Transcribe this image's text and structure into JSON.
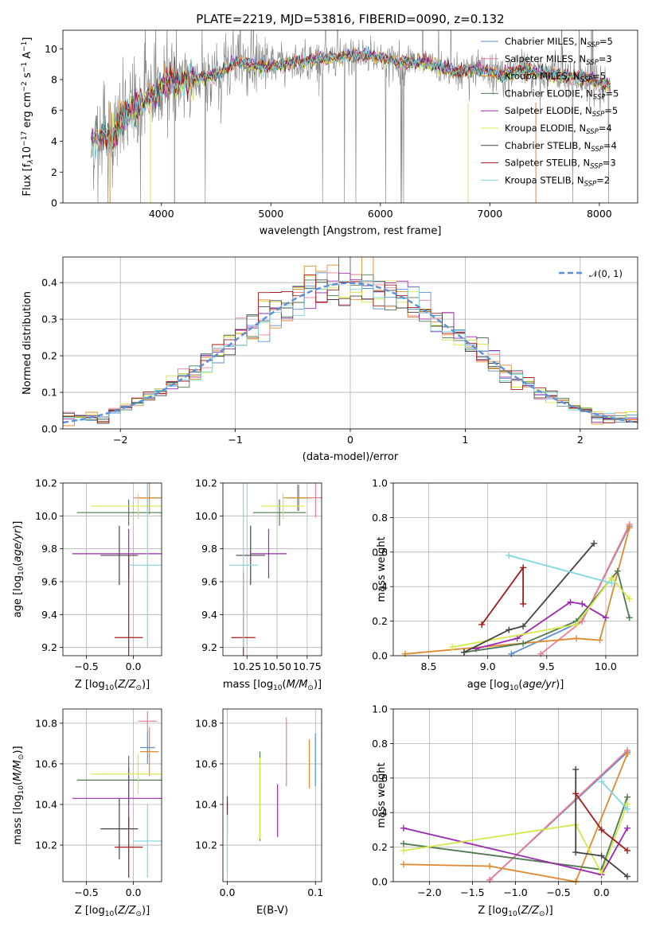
{
  "figure": {
    "title": "PLATE=2219, MJD=53816, FIBERID=0090, z=0.132"
  },
  "colors": {
    "Chabrier MILES": "#5b8fd6",
    "Salpeter MILES": "#f07c8f",
    "Kroupa MILES": "#e08a30",
    "Chabrier ELODIE": "#4f7a4f",
    "Salpeter ELODIE": "#9b2ab0",
    "Kroupa ELODIE": "#d4e84a",
    "Chabrier STELIB": "#444444",
    "Salpeter STELIB": "#a31a1a",
    "Kroupa STELIB": "#7fd8df",
    "spectrum": "#808080",
    "gaussian": "#5b8fd6"
  },
  "chart_data": [
    {
      "id": "spectrum",
      "type": "line",
      "title": "PLATE=2219, MJD=53816, FIBERID=0090, z=0.132",
      "xlabel": "wavelength [Angstrom, rest frame]",
      "ylabel": "Flux [f_λ10^-17 erg cm^-2 s^-1 A^-1]",
      "xlim": [
        3100,
        8350
      ],
      "ylim": [
        0,
        11.2
      ],
      "xticks": [
        4000,
        5000,
        6000,
        7000,
        8000
      ],
      "yticks": [
        0,
        2,
        4,
        6,
        8,
        10
      ],
      "grid": false,
      "legend_position": "right",
      "legend": [
        {
          "label": "Chabrier MILES, N",
          "sub": "SSP",
          "eq": "=5"
        },
        {
          "label": "Salpeter MILES, N",
          "sub": "SSP",
          "eq": "=3"
        },
        {
          "label": "Kroupa MILES, N",
          "sub": "SSP",
          "eq": "=5"
        },
        {
          "label": "Chabrier ELODIE, N",
          "sub": "SSP",
          "eq": "=5"
        },
        {
          "label": "Salpeter ELODIE, N",
          "sub": "SSP",
          "eq": "=5"
        },
        {
          "label": "Kroupa ELODIE, N",
          "sub": "SSP",
          "eq": "=4"
        },
        {
          "label": "Chabrier STELIB, N",
          "sub": "SSP",
          "eq": "=4"
        },
        {
          "label": "Salpeter STELIB, N",
          "sub": "SSP",
          "eq": "=3"
        },
        {
          "label": "Kroupa STELIB, N",
          "sub": "SSP",
          "eq": "=2"
        }
      ],
      "model_curve": {
        "x": [
          3350,
          3450,
          3550,
          3650,
          3750,
          3850,
          3950,
          4050,
          4150,
          4300,
          4500,
          4700,
          4900,
          5100,
          5300,
          5500,
          5700,
          5900,
          6100,
          6300,
          6500,
          6700,
          6900,
          7100,
          7300,
          7500,
          7700,
          7900,
          8100
        ],
        "y": [
          4.0,
          4.5,
          4.2,
          5.5,
          6.0,
          6.8,
          7.0,
          8.1,
          7.8,
          8.0,
          8.3,
          9.2,
          8.8,
          9.0,
          9.2,
          9.4,
          9.5,
          9.6,
          9.2,
          9.1,
          8.9,
          8.5,
          8.6,
          8.3,
          8.6,
          8.4,
          8.2,
          8.0,
          7.6
        ]
      }
    },
    {
      "id": "residuals",
      "type": "bar",
      "xlabel": "(data-model)/error",
      "ylabel": "Normed distribution",
      "xlim": [
        -2.5,
        2.5
      ],
      "ylim": [
        0,
        0.47
      ],
      "xticks": [
        -2,
        -1,
        0,
        1,
        2
      ],
      "yticks": [
        0.0,
        0.1,
        0.2,
        0.3,
        0.4
      ],
      "grid": true,
      "legend_position": "top-right",
      "legend_label": "𝒩(0, 1)",
      "bin_width": 0.1
    },
    {
      "id": "age-vs-Z",
      "type": "scatter",
      "xlabel": "Z [log10(Z/Z☉)]",
      "ylabel": "age [log10(age/yr)]",
      "xlim": [
        -0.75,
        0.3
      ],
      "ylim": [
        9.15,
        10.2
      ],
      "xticks": [
        -0.5,
        0.0
      ],
      "yticks": [
        9.2,
        9.4,
        9.6,
        9.8,
        10.0,
        10.2
      ],
      "grid": true,
      "points": [
        {
          "series": "Chabrier MILES",
          "x": 0.15,
          "y": 10.11,
          "ex": 0.1,
          "ey": 0.08
        },
        {
          "series": "Salpeter MILES",
          "x": 0.15,
          "y": 10.11,
          "ex": 0.15,
          "ey": 0.05
        },
        {
          "series": "Kroupa MILES",
          "x": 0.17,
          "y": 10.11,
          "ex": 0.12,
          "ey": 0.1
        },
        {
          "series": "Chabrier ELODIE",
          "x": -0.05,
          "y": 10.02,
          "ex": 0.55,
          "ey": 0.08
        },
        {
          "series": "Salpeter ELODIE",
          "x": -0.05,
          "y": 9.77,
          "ex": 0.6,
          "ey": 0.15
        },
        {
          "series": "Kroupa ELODIE",
          "x": 0.05,
          "y": 10.06,
          "ex": 0.5,
          "ey": 0.08
        },
        {
          "series": "Chabrier STELIB",
          "x": -0.15,
          "y": 9.76,
          "ex": 0.2,
          "ey": 0.18
        },
        {
          "series": "Salpeter STELIB",
          "x": -0.05,
          "y": 9.26,
          "ex": 0.15,
          "ey": 0.5
        },
        {
          "series": "Kroupa STELIB",
          "x": 0.15,
          "y": 9.7,
          "ex": 0.2,
          "ey": 0.5
        }
      ]
    },
    {
      "id": "age-vs-mass",
      "type": "scatter",
      "xlabel": "mass [log10(M/M☉)]",
      "ylabel": "",
      "xlim": [
        10.05,
        10.87
      ],
      "ylim": [
        9.15,
        10.2
      ],
      "xticks": [
        10.25,
        10.5,
        10.75
      ],
      "xtick_labels": [
        "10.25",
        "10.50",
        "10.75"
      ],
      "yticks": [
        9.2,
        9.4,
        9.6,
        9.8,
        10.0,
        10.2
      ],
      "grid": true,
      "points": [
        {
          "series": "Chabrier MILES",
          "x": 10.68,
          "y": 10.11,
          "ex": 0.08,
          "ey": 0.08
        },
        {
          "series": "Salpeter MILES",
          "x": 10.82,
          "y": 10.11,
          "ex": 0.05,
          "ey": 0.12
        },
        {
          "series": "Kroupa MILES",
          "x": 10.67,
          "y": 10.11,
          "ex": 0.12,
          "ey": 0.08
        },
        {
          "series": "Chabrier ELODIE",
          "x": 10.52,
          "y": 10.02,
          "ex": 0.22,
          "ey": 0.08
        },
        {
          "series": "Salpeter ELODIE",
          "x": 10.43,
          "y": 9.77,
          "ex": 0.15,
          "ey": 0.15
        },
        {
          "series": "Kroupa ELODIE",
          "x": 10.55,
          "y": 10.06,
          "ex": 0.18,
          "ey": 0.08
        },
        {
          "series": "Chabrier STELIB",
          "x": 10.28,
          "y": 9.76,
          "ex": 0.12,
          "ey": 0.18
        },
        {
          "series": "Salpeter STELIB",
          "x": 10.22,
          "y": 9.26,
          "ex": 0.1,
          "ey": 0.4
        },
        {
          "series": "Kroupa STELIB",
          "x": 10.22,
          "y": 9.7,
          "ex": 0.12,
          "ey": 0.5
        }
      ]
    },
    {
      "id": "weight-vs-age",
      "type": "line",
      "xlabel": "age [log10(age/yr)]",
      "ylabel": "mass weight",
      "xlim": [
        8.2,
        10.27
      ],
      "ylim": [
        0,
        1.0
      ],
      "xticks": [
        8.5,
        9.0,
        9.5,
        10.0
      ],
      "yticks": [
        0.0,
        0.2,
        0.4,
        0.6,
        0.8,
        1.0
      ],
      "grid": true,
      "series": [
        {
          "name": "Chabrier MILES",
          "x": [
            9.2,
            9.8,
            10.2
          ],
          "y": [
            0.01,
            0.2,
            0.75
          ]
        },
        {
          "name": "Salpeter MILES",
          "x": [
            9.45,
            9.8,
            10.2
          ],
          "y": [
            0.01,
            0.2,
            0.76
          ]
        },
        {
          "name": "Kroupa MILES",
          "x": [
            8.3,
            9.75,
            9.95,
            10.2
          ],
          "y": [
            0.01,
            0.1,
            0.09,
            0.74
          ]
        },
        {
          "name": "Chabrier ELODIE",
          "x": [
            8.8,
            9.3,
            9.75,
            10.1,
            10.2
          ],
          "y": [
            0.02,
            0.07,
            0.2,
            0.49,
            0.22
          ]
        },
        {
          "name": "Salpeter ELODIE",
          "x": [
            8.9,
            9.25,
            9.7,
            9.8,
            10.0
          ],
          "y": [
            0.04,
            0.1,
            0.31,
            0.3,
            0.22
          ]
        },
        {
          "name": "Kroupa ELODIE",
          "x": [
            8.7,
            9.75,
            10.05,
            10.2
          ],
          "y": [
            0.05,
            0.18,
            0.45,
            0.33
          ]
        },
        {
          "name": "Chabrier STELIB",
          "x": [
            8.8,
            9.18,
            9.3,
            9.9
          ],
          "y": [
            0.02,
            0.15,
            0.17,
            0.65
          ]
        },
        {
          "name": "Salpeter STELIB",
          "x": [
            8.95,
            9.3,
            9.3
          ],
          "y": [
            0.18,
            0.51,
            0.3
          ]
        },
        {
          "name": "Kroupa STELIB",
          "x": [
            9.18,
            10.05
          ],
          "y": [
            0.58,
            0.42
          ]
        }
      ]
    },
    {
      "id": "mass-vs-Z",
      "type": "scatter",
      "xlabel": "Z [log10(Z/Z☉)]",
      "ylabel": "mass [log10(M/M☉)]",
      "xlim": [
        -0.75,
        0.3
      ],
      "ylim": [
        10.02,
        10.87
      ],
      "xticks": [
        -0.5,
        0.0
      ],
      "yticks": [
        10.2,
        10.4,
        10.6,
        10.8
      ],
      "grid": true,
      "points": [
        {
          "series": "Chabrier MILES",
          "x": 0.15,
          "y": 10.68,
          "ex": 0.08,
          "ey": 0.08
        },
        {
          "series": "Salpeter MILES",
          "x": 0.15,
          "y": 10.81,
          "ex": 0.1,
          "ey": 0.05
        },
        {
          "series": "Kroupa MILES",
          "x": 0.17,
          "y": 10.66,
          "ex": 0.1,
          "ey": 0.12
        },
        {
          "series": "Chabrier ELODIE",
          "x": -0.05,
          "y": 10.52,
          "ex": 0.55,
          "ey": 0.12
        },
        {
          "series": "Salpeter ELODIE",
          "x": -0.05,
          "y": 10.43,
          "ex": 0.6,
          "ey": 0.15
        },
        {
          "series": "Kroupa ELODIE",
          "x": 0.05,
          "y": 10.55,
          "ex": 0.5,
          "ey": 0.1
        },
        {
          "series": "Chabrier STELIB",
          "x": -0.15,
          "y": 10.28,
          "ex": 0.2,
          "ey": 0.15
        },
        {
          "series": "Salpeter STELIB",
          "x": -0.05,
          "y": 10.19,
          "ex": 0.15,
          "ey": 0.15
        },
        {
          "series": "Kroupa STELIB",
          "x": 0.15,
          "y": 10.22,
          "ex": 0.15,
          "ey": 0.18
        }
      ]
    },
    {
      "id": "mass-vs-ebv",
      "type": "scatter",
      "xlabel": "E(B-V)",
      "ylabel": "",
      "xlim": [
        -0.005,
        0.107
      ],
      "ylim": [
        10.02,
        10.87
      ],
      "xticks": [
        0.0,
        0.1
      ],
      "yticks": [
        10.2,
        10.4,
        10.6,
        10.8
      ],
      "grid": true,
      "points": [
        {
          "series": "Chabrier MILES",
          "x": 0.1,
          "y": 10.62,
          "ey": 0.13
        },
        {
          "series": "Salpeter MILES",
          "x": 0.067,
          "y": 10.66,
          "ey": 0.17
        },
        {
          "series": "Kroupa MILES",
          "x": 0.093,
          "y": 10.6,
          "ey": 0.12
        },
        {
          "series": "Chabrier ELODIE",
          "x": 0.037,
          "y": 10.44,
          "ey": 0.22
        },
        {
          "series": "Salpeter ELODIE",
          "x": 0.057,
          "y": 10.37,
          "ey": 0.13
        },
        {
          "series": "Kroupa ELODIE",
          "x": 0.037,
          "y": 10.43,
          "ey": 0.2
        },
        {
          "series": "Chabrier STELIB",
          "x": 0.0,
          "y": 10.35,
          "ey": 0.09
        },
        {
          "series": "Salpeter STELIB",
          "x": 0.0,
          "y": 10.38,
          "ey": 0.03
        },
        {
          "series": "Kroupa STELIB",
          "x": 0.0,
          "y": 10.2,
          "ey": 0.15
        }
      ]
    },
    {
      "id": "weight-vs-Z",
      "type": "line",
      "xlabel": "Z [log10(Z/Z☉)]",
      "ylabel": "mass weight",
      "xlim": [
        -2.42,
        0.42
      ],
      "ylim": [
        0,
        1.0
      ],
      "xticks": [
        -2.0,
        -1.5,
        -1.0,
        -0.5,
        0.0
      ],
      "yticks": [
        0.0,
        0.2,
        0.4,
        0.6,
        0.8,
        1.0
      ],
      "grid": true,
      "series": [
        {
          "name": "Chabrier MILES",
          "x": [
            -1.3,
            0.3
          ],
          "y": [
            0.01,
            0.75
          ]
        },
        {
          "name": "Salpeter MILES",
          "x": [
            -1.3,
            0.3
          ],
          "y": [
            0.01,
            0.76
          ]
        },
        {
          "name": "Kroupa MILES",
          "x": [
            -2.3,
            -1.3,
            -0.3,
            0.3
          ],
          "y": [
            0.1,
            0.09,
            0.0,
            0.74
          ]
        },
        {
          "name": "Chabrier ELODIE",
          "x": [
            -2.3,
            0.0,
            0.3
          ],
          "y": [
            0.22,
            0.07,
            0.49
          ]
        },
        {
          "name": "Salpeter ELODIE",
          "x": [
            -2.3,
            0.0,
            0.3
          ],
          "y": [
            0.31,
            0.04,
            0.31
          ]
        },
        {
          "name": "Kroupa ELODIE",
          "x": [
            -2.3,
            -0.3,
            0.0,
            0.3
          ],
          "y": [
            0.18,
            0.33,
            0.05,
            0.45
          ]
        },
        {
          "name": "Chabrier STELIB",
          "x": [
            -0.3,
            -0.3,
            0.0,
            0.3
          ],
          "y": [
            0.65,
            0.17,
            0.15,
            0.03
          ]
        },
        {
          "name": "Salpeter STELIB",
          "x": [
            -0.3,
            0.0,
            0.3
          ],
          "y": [
            0.51,
            0.3,
            0.18
          ]
        },
        {
          "name": "Kroupa STELIB",
          "x": [
            0.0,
            0.3
          ],
          "y": [
            0.58,
            0.42
          ]
        }
      ]
    }
  ]
}
